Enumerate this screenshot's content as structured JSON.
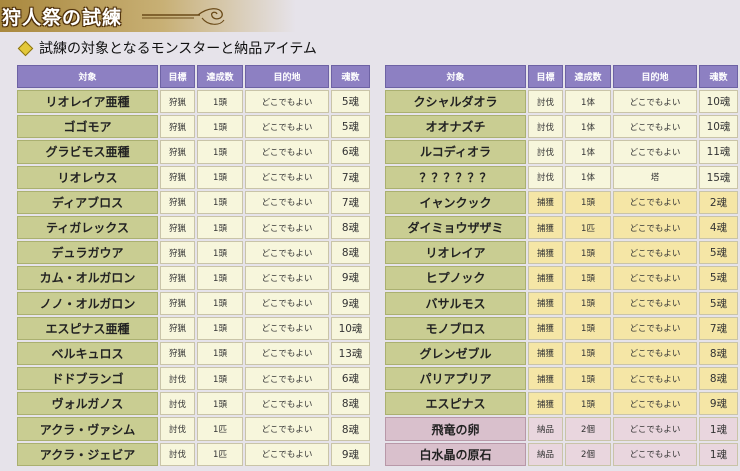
{
  "title": "狩人祭の試練",
  "subtitle": "試練の対象となるモンスターと納品アイテム",
  "headers": [
    "対象",
    "目標",
    "達成数",
    "目的地",
    "魂数"
  ],
  "left_rows": [
    {
      "name": "リオレイア亜種",
      "goal": "狩猟",
      "count": "1頭",
      "dest": "どこでもよい",
      "soul": "5魂",
      "kind": "hunt"
    },
    {
      "name": "ゴゴモア",
      "goal": "狩猟",
      "count": "1頭",
      "dest": "どこでもよい",
      "soul": "5魂",
      "kind": "hunt"
    },
    {
      "name": "グラビモス亜種",
      "goal": "狩猟",
      "count": "1頭",
      "dest": "どこでもよい",
      "soul": "6魂",
      "kind": "hunt"
    },
    {
      "name": "リオレウス",
      "goal": "狩猟",
      "count": "1頭",
      "dest": "どこでもよい",
      "soul": "7魂",
      "kind": "hunt"
    },
    {
      "name": "ディアブロス",
      "goal": "狩猟",
      "count": "1頭",
      "dest": "どこでもよい",
      "soul": "7魂",
      "kind": "hunt"
    },
    {
      "name": "ティガレックス",
      "goal": "狩猟",
      "count": "1頭",
      "dest": "どこでもよい",
      "soul": "8魂",
      "kind": "hunt"
    },
    {
      "name": "デュラガウア",
      "goal": "狩猟",
      "count": "1頭",
      "dest": "どこでもよい",
      "soul": "8魂",
      "kind": "hunt"
    },
    {
      "name": "カム・オルガロン",
      "goal": "狩猟",
      "count": "1頭",
      "dest": "どこでもよい",
      "soul": "9魂",
      "kind": "hunt"
    },
    {
      "name": "ノノ・オルガロン",
      "goal": "狩猟",
      "count": "1頭",
      "dest": "どこでもよい",
      "soul": "9魂",
      "kind": "hunt"
    },
    {
      "name": "エスピナス亜種",
      "goal": "狩猟",
      "count": "1頭",
      "dest": "どこでもよい",
      "soul": "10魂",
      "kind": "hunt"
    },
    {
      "name": "ベルキュロス",
      "goal": "狩猟",
      "count": "1頭",
      "dest": "どこでもよい",
      "soul": "13魂",
      "kind": "hunt"
    },
    {
      "name": "ドドブランゴ",
      "goal": "討伐",
      "count": "1頭",
      "dest": "どこでもよい",
      "soul": "6魂",
      "kind": "slay"
    },
    {
      "name": "ヴォルガノス",
      "goal": "討伐",
      "count": "1頭",
      "dest": "どこでもよい",
      "soul": "8魂",
      "kind": "slay"
    },
    {
      "name": "アクラ・ヴァシム",
      "goal": "討伐",
      "count": "1匹",
      "dest": "どこでもよい",
      "soul": "8魂",
      "kind": "slay"
    },
    {
      "name": "アクラ・ジェビア",
      "goal": "討伐",
      "count": "1匹",
      "dest": "どこでもよい",
      "soul": "9魂",
      "kind": "slay"
    }
  ],
  "right_rows": [
    {
      "name": "クシャルダオラ",
      "goal": "討伐",
      "count": "1体",
      "dest": "どこでもよい",
      "soul": "10魂",
      "kind": "slay"
    },
    {
      "name": "オオナズチ",
      "goal": "討伐",
      "count": "1体",
      "dest": "どこでもよい",
      "soul": "10魂",
      "kind": "slay"
    },
    {
      "name": "ルコディオラ",
      "goal": "討伐",
      "count": "1体",
      "dest": "どこでもよい",
      "soul": "11魂",
      "kind": "slay"
    },
    {
      "name": "？？？？？？",
      "goal": "討伐",
      "count": "1体",
      "dest": "塔",
      "soul": "15魂",
      "kind": "slay"
    },
    {
      "name": "イャンクック",
      "goal": "捕獲",
      "count": "1頭",
      "dest": "どこでもよい",
      "soul": "2魂",
      "kind": "cap"
    },
    {
      "name": "ダイミョウザザミ",
      "goal": "捕獲",
      "count": "1匹",
      "dest": "どこでもよい",
      "soul": "4魂",
      "kind": "cap"
    },
    {
      "name": "リオレイア",
      "goal": "捕獲",
      "count": "1頭",
      "dest": "どこでもよい",
      "soul": "5魂",
      "kind": "cap"
    },
    {
      "name": "ヒプノック",
      "goal": "捕獲",
      "count": "1頭",
      "dest": "どこでもよい",
      "soul": "5魂",
      "kind": "cap"
    },
    {
      "name": "バサルモス",
      "goal": "捕獲",
      "count": "1頭",
      "dest": "どこでもよい",
      "soul": "5魂",
      "kind": "cap"
    },
    {
      "name": "モノブロス",
      "goal": "捕獲",
      "count": "1頭",
      "dest": "どこでもよい",
      "soul": "7魂",
      "kind": "cap"
    },
    {
      "name": "グレンゼブル",
      "goal": "捕獲",
      "count": "1頭",
      "dest": "どこでもよい",
      "soul": "8魂",
      "kind": "cap"
    },
    {
      "name": "パリアプリア",
      "goal": "捕獲",
      "count": "1頭",
      "dest": "どこでもよい",
      "soul": "8魂",
      "kind": "cap"
    },
    {
      "name": "エスピナス",
      "goal": "捕獲",
      "count": "1頭",
      "dest": "どこでもよい",
      "soul": "9魂",
      "kind": "cap"
    },
    {
      "name": "飛竜の卵",
      "goal": "納品",
      "count": "2個",
      "dest": "どこでもよい",
      "soul": "1魂",
      "kind": "del"
    },
    {
      "name": "白水晶の原石",
      "goal": "納品",
      "count": "2個",
      "dest": "どこでもよい",
      "soul": "1魂",
      "kind": "del"
    }
  ]
}
